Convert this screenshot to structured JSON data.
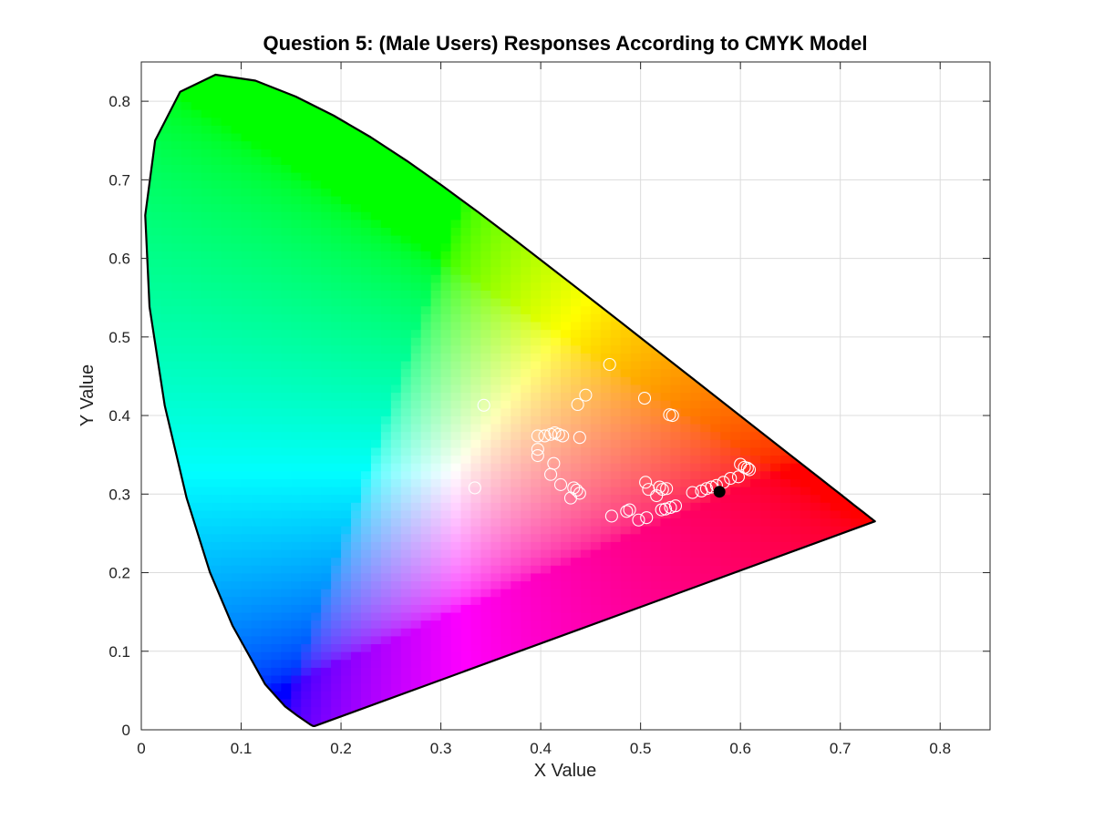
{
  "chart_data": {
    "type": "scatter",
    "title": "Question 5: (Male Users) Responses According to CMYK Model",
    "xlabel": "X Value",
    "ylabel": "Y Value",
    "xlim": [
      0,
      0.85
    ],
    "ylim": [
      0,
      0.85
    ],
    "xticks": [
      0,
      0.1,
      0.2,
      0.3,
      0.4,
      0.5,
      0.6,
      0.7,
      0.8
    ],
    "yticks": [
      0,
      0.1,
      0.2,
      0.3,
      0.4,
      0.5,
      0.6,
      0.7,
      0.8
    ],
    "xtick_labels": [
      "0",
      "0.1",
      "0.2",
      "0.3",
      "0.4",
      "0.5",
      "0.6",
      "0.7",
      "0.8"
    ],
    "ytick_labels": [
      "0",
      "0.1",
      "0.2",
      "0.3",
      "0.4",
      "0.5",
      "0.6",
      "0.7",
      "0.8"
    ],
    "grid": true,
    "background": "CIE 1931 chromaticity diagram (spectral locus)",
    "locus": [
      [
        0.1741,
        0.005
      ],
      [
        0.1738,
        0.0049
      ],
      [
        0.1733,
        0.0048
      ],
      [
        0.1726,
        0.0048
      ],
      [
        0.1714,
        0.0051
      ],
      [
        0.1689,
        0.0069
      ],
      [
        0.1644,
        0.0109
      ],
      [
        0.1566,
        0.0177
      ],
      [
        0.144,
        0.0297
      ],
      [
        0.1241,
        0.0578
      ],
      [
        0.0913,
        0.1327
      ],
      [
        0.0687,
        0.2007
      ],
      [
        0.0454,
        0.295
      ],
      [
        0.0235,
        0.4127
      ],
      [
        0.0082,
        0.5384
      ],
      [
        0.0039,
        0.6548
      ],
      [
        0.0139,
        0.7502
      ],
      [
        0.0389,
        0.812
      ],
      [
        0.0743,
        0.8338
      ],
      [
        0.1142,
        0.8262
      ],
      [
        0.1547,
        0.8059
      ],
      [
        0.1929,
        0.7816
      ],
      [
        0.2296,
        0.7543
      ],
      [
        0.2658,
        0.7243
      ],
      [
        0.3016,
        0.6923
      ],
      [
        0.3373,
        0.6589
      ],
      [
        0.3731,
        0.6245
      ],
      [
        0.4087,
        0.5896
      ],
      [
        0.4441,
        0.5547
      ],
      [
        0.4788,
        0.5202
      ],
      [
        0.5125,
        0.4866
      ],
      [
        0.5448,
        0.4544
      ],
      [
        0.5752,
        0.4242
      ],
      [
        0.6029,
        0.3965
      ],
      [
        0.627,
        0.3725
      ],
      [
        0.6482,
        0.3514
      ],
      [
        0.6658,
        0.334
      ],
      [
        0.6801,
        0.3197
      ],
      [
        0.6915,
        0.3083
      ],
      [
        0.7006,
        0.2993
      ],
      [
        0.7079,
        0.292
      ],
      [
        0.714,
        0.2859
      ],
      [
        0.719,
        0.2809
      ],
      [
        0.723,
        0.277
      ],
      [
        0.726,
        0.274
      ],
      [
        0.7283,
        0.2717
      ],
      [
        0.73,
        0.27
      ],
      [
        0.7311,
        0.2689
      ],
      [
        0.732,
        0.268
      ],
      [
        0.7327,
        0.2673
      ],
      [
        0.7334,
        0.2666
      ],
      [
        0.734,
        0.266
      ],
      [
        0.7344,
        0.2656
      ],
      [
        0.7346,
        0.2654
      ],
      [
        0.7347,
        0.2653
      ]
    ],
    "series": [
      {
        "marker": "open-circle",
        "color": "#ffffff",
        "points": [
          [
            0.469,
            0.465
          ],
          [
            0.343,
            0.413
          ],
          [
            0.445,
            0.426
          ],
          [
            0.437,
            0.414
          ],
          [
            0.504,
            0.422
          ],
          [
            0.529,
            0.401
          ],
          [
            0.532,
            0.4
          ],
          [
            0.334,
            0.308
          ],
          [
            0.397,
            0.374
          ],
          [
            0.404,
            0.374
          ],
          [
            0.41,
            0.376
          ],
          [
            0.414,
            0.378
          ],
          [
            0.418,
            0.376
          ],
          [
            0.422,
            0.374
          ],
          [
            0.439,
            0.372
          ],
          [
            0.397,
            0.357
          ],
          [
            0.397,
            0.349
          ],
          [
            0.413,
            0.339
          ],
          [
            0.41,
            0.325
          ],
          [
            0.42,
            0.312
          ],
          [
            0.433,
            0.308
          ],
          [
            0.436,
            0.305
          ],
          [
            0.439,
            0.301
          ],
          [
            0.43,
            0.295
          ],
          [
            0.471,
            0.272
          ],
          [
            0.486,
            0.278
          ],
          [
            0.489,
            0.28
          ],
          [
            0.498,
            0.267
          ],
          [
            0.506,
            0.27
          ],
          [
            0.505,
            0.315
          ],
          [
            0.508,
            0.306
          ],
          [
            0.516,
            0.298
          ],
          [
            0.519,
            0.309
          ],
          [
            0.522,
            0.306
          ],
          [
            0.526,
            0.307
          ],
          [
            0.521,
            0.28
          ],
          [
            0.525,
            0.281
          ],
          [
            0.53,
            0.283
          ],
          [
            0.535,
            0.285
          ],
          [
            0.552,
            0.302
          ],
          [
            0.561,
            0.304
          ],
          [
            0.566,
            0.307
          ],
          [
            0.571,
            0.309
          ],
          [
            0.576,
            0.311
          ],
          [
            0.583,
            0.315
          ],
          [
            0.59,
            0.32
          ],
          [
            0.598,
            0.322
          ],
          [
            0.6,
            0.338
          ],
          [
            0.604,
            0.334
          ],
          [
            0.607,
            0.333
          ],
          [
            0.609,
            0.331
          ]
        ]
      },
      {
        "marker": "filled-circle",
        "color": "#000000",
        "points": [
          [
            0.579,
            0.303
          ]
        ]
      }
    ]
  }
}
